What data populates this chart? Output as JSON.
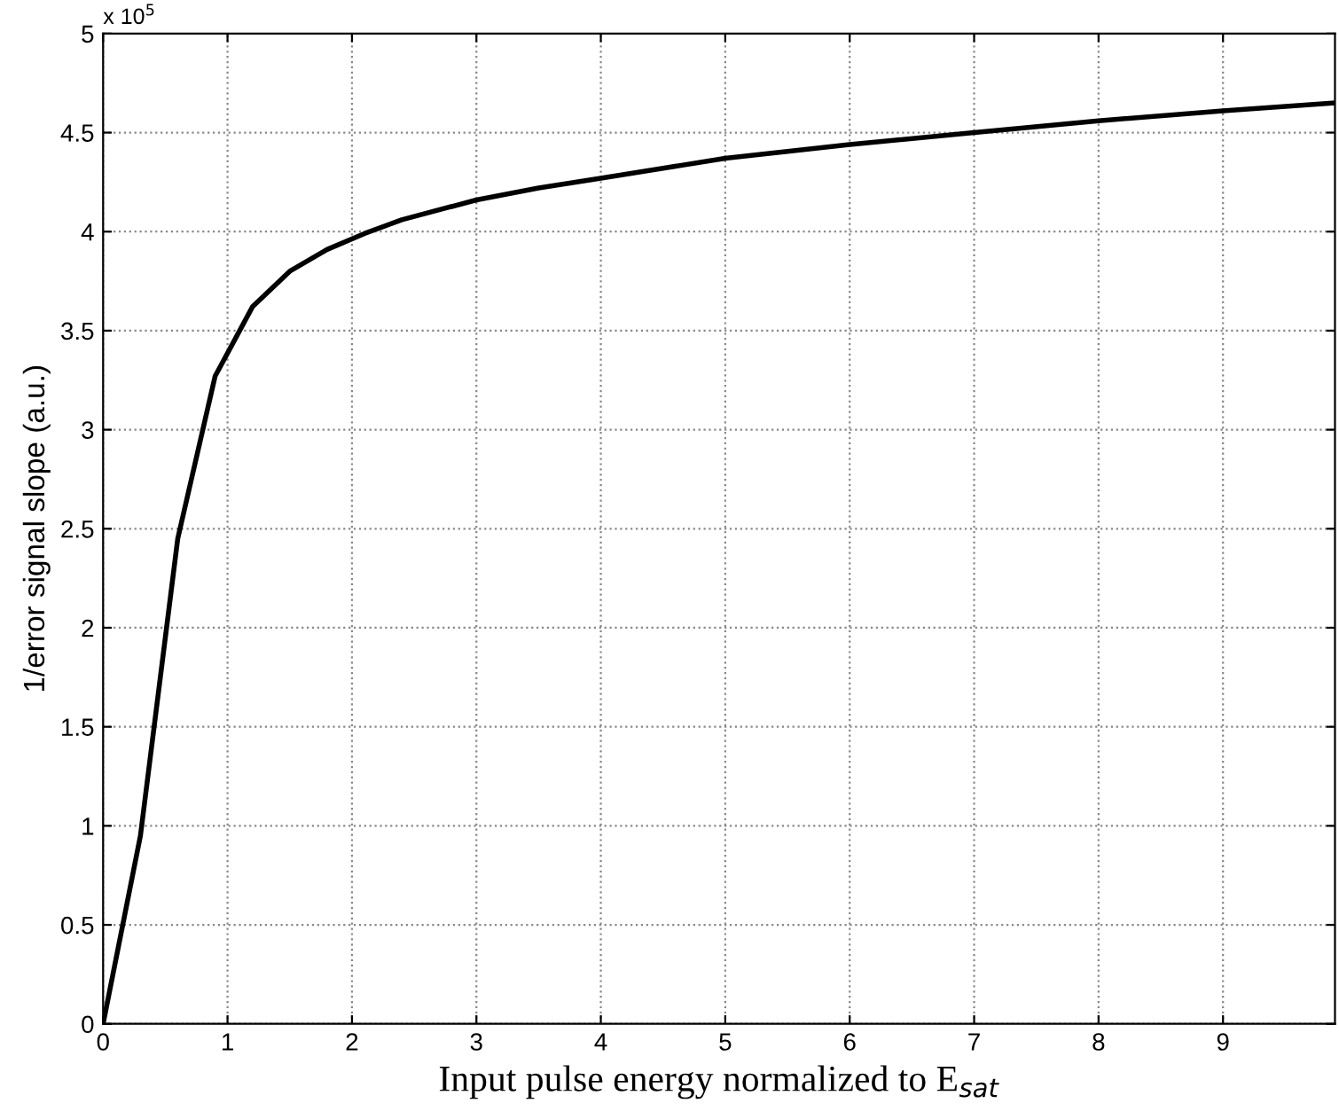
{
  "chart_data": {
    "type": "line",
    "xlabel": "Input pulse energy normalized to E$_{sat}$",
    "ylabel": "1/error signal slope (a.u.)",
    "annotations": [
      "x 10$^{5}$"
    ],
    "x": [
      0,
      0.3,
      0.6,
      0.9,
      1.2,
      1.5,
      1.8,
      2.1,
      2.4,
      3,
      3.5,
      4,
      4.5,
      5,
      6,
      7,
      8,
      9,
      9.9
    ],
    "series": [
      {
        "color": "#000000",
        "values": [
          0,
          0.95,
          2.45,
          3.27,
          3.62,
          3.8,
          3.91,
          3.99,
          4.06,
          4.16,
          4.22,
          4.27,
          4.32,
          4.37,
          4.44,
          4.5,
          4.56,
          4.61,
          4.65
        ]
      }
    ],
    "xlim": [
      0,
      9.9
    ],
    "xticks": [
      0,
      1,
      2,
      3,
      4,
      5,
      6,
      7,
      8,
      9
    ],
    "ylim": [
      0,
      5
    ],
    "yticks": [
      0,
      0.5,
      1,
      1.5,
      2,
      2.5,
      3,
      3.5,
      4,
      4.5,
      5
    ],
    "grid": true,
    "marker": "none",
    "line_style": "solid"
  }
}
